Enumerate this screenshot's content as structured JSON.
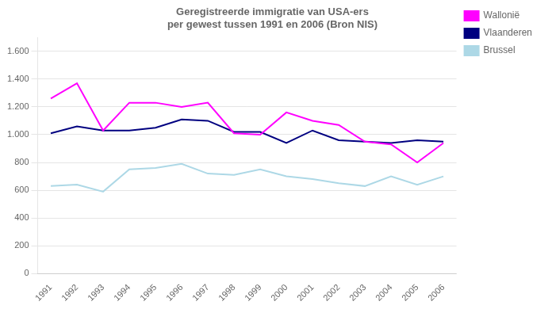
{
  "chart_data": {
    "type": "line",
    "title": "Geregistreerde immigratie van USA-ers\nper gewest tussen 1991 en 2006 (Bron NIS)",
    "x": [
      1991,
      1992,
      1993,
      1994,
      1995,
      1996,
      1997,
      1998,
      1999,
      2000,
      2001,
      2002,
      2003,
      2004,
      2005,
      2006
    ],
    "series": [
      {
        "name": "Wallonië",
        "color": "#FF00FF",
        "values": [
          1260,
          1370,
          1030,
          1230,
          1230,
          1200,
          1230,
          1010,
          1000,
          1160,
          1100,
          1070,
          950,
          930,
          800,
          940
        ]
      },
      {
        "name": "Vlaanderen",
        "color": "#000080",
        "values": [
          1010,
          1060,
          1030,
          1030,
          1050,
          1110,
          1100,
          1020,
          1020,
          940,
          1030,
          960,
          950,
          940,
          960,
          950
        ]
      },
      {
        "name": "Brussel",
        "color": "#ADD8E6",
        "values": [
          630,
          640,
          590,
          750,
          760,
          790,
          720,
          710,
          750,
          700,
          680,
          650,
          630,
          700,
          640,
          700
        ]
      }
    ],
    "xlim": [
      1990.5,
      2006.5
    ],
    "xticks": [
      1991,
      1992,
      1993,
      1994,
      1995,
      1996,
      1997,
      1998,
      1999,
      2000,
      2001,
      2002,
      2003,
      2004,
      2005,
      2006
    ],
    "ylim": [
      0,
      1700
    ],
    "yticks": [
      0,
      200,
      400,
      600,
      800,
      {
        "value": 1000,
        "label": "1.000"
      },
      {
        "value": 1200,
        "label": "1.200"
      },
      {
        "value": 1400,
        "label": "1.400"
      },
      {
        "value": 1600,
        "label": "1.600"
      }
    ],
    "grid": "y",
    "legend": "right"
  }
}
